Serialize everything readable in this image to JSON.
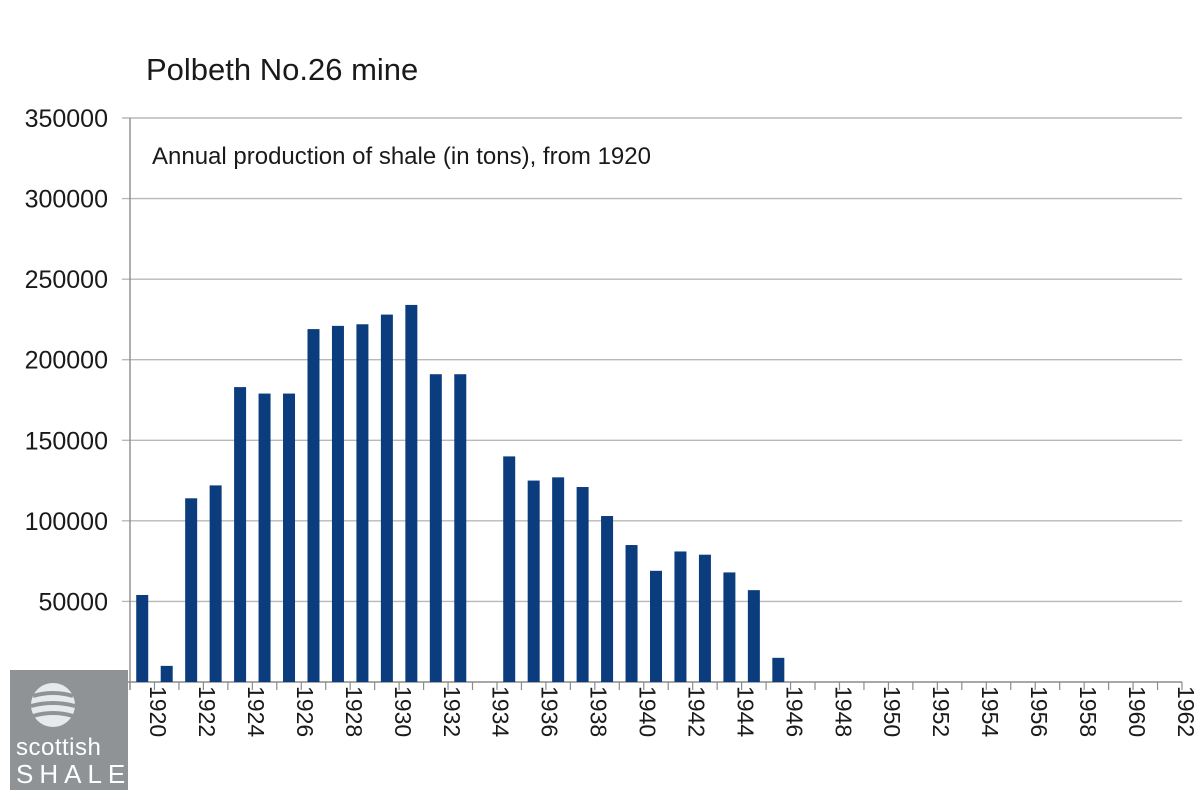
{
  "chart_data": {
    "type": "bar",
    "title": "Polbeth No.26 mine",
    "subtitle": "Annual production of shale (in tons), from 1920",
    "xlabel": "",
    "ylabel": "",
    "ylim": [
      0,
      350000
    ],
    "yticks": [
      0,
      50000,
      100000,
      150000,
      200000,
      250000,
      300000,
      350000
    ],
    "grid": true,
    "bar_color": "#0b3c7d",
    "categories": [
      "1920",
      "1921",
      "1922",
      "1923",
      "1924",
      "1925",
      "1926",
      "1927",
      "1928",
      "1929",
      "1930",
      "1931",
      "1932",
      "1933",
      "1934",
      "1935",
      "1936",
      "1937",
      "1938",
      "1939",
      "1940",
      "1941",
      "1942",
      "1943",
      "1944",
      "1945",
      "1946",
      "1947",
      "1948",
      "1949",
      "1950",
      "1951",
      "1952",
      "1953",
      "1954",
      "1955",
      "1956",
      "1957",
      "1958",
      "1959",
      "1960",
      "1961",
      "1962"
    ],
    "values": [
      54000,
      10000,
      114000,
      122000,
      183000,
      179000,
      179000,
      219000,
      221000,
      222000,
      228000,
      234000,
      191000,
      191000,
      0,
      140000,
      125000,
      127000,
      121000,
      103000,
      85000,
      69000,
      81000,
      79000,
      68000,
      57000,
      15000,
      0,
      0,
      0,
      0,
      0,
      0,
      0,
      0,
      0,
      0,
      0,
      0,
      0,
      0,
      0,
      0
    ],
    "tick_labels_shown": [
      "1920",
      "1922",
      "1924",
      "1926",
      "1928",
      "1930",
      "1932",
      "1934",
      "1936",
      "1938",
      "1940",
      "1942",
      "1944",
      "1946",
      "1948",
      "1950",
      "1952",
      "1954",
      "1956",
      "1958",
      "1960",
      "1962"
    ]
  },
  "logo": {
    "line1": "scottish",
    "line2": "SHALE",
    "icon": "globe-icon"
  }
}
